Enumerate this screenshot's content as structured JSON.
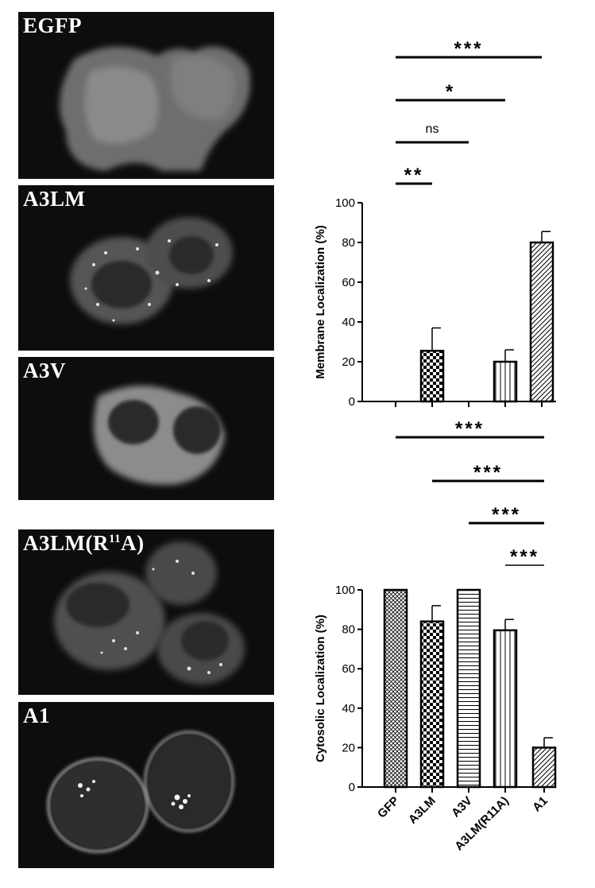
{
  "panels": [
    {
      "id": "egfp",
      "label": "EGFP"
    },
    {
      "id": "a3lm",
      "label": "A3LM"
    },
    {
      "id": "a3v",
      "label": "A3V"
    },
    {
      "id": "a3lm_r11a",
      "label_main": "A3LM(R",
      "label_sup": "11",
      "label_tail": "A)"
    },
    {
      "id": "a1",
      "label": "A1"
    }
  ],
  "chart_data": [
    {
      "type": "bar",
      "ylabel": "Membrane Localization (%)",
      "ylim": [
        0,
        100
      ],
      "yticks": [
        0,
        20,
        40,
        60,
        80,
        100
      ],
      "categories": [
        "GFP",
        "A3LM",
        "A3V",
        "A3LM(R11A)",
        "A1"
      ],
      "values": [
        0,
        25.5,
        0,
        20,
        80
      ],
      "errors": [
        0,
        11.5,
        0,
        6,
        5.5
      ],
      "patterns": [
        "crosshatch",
        "checker",
        "hlines",
        "vlines",
        "diag"
      ],
      "significance": [
        {
          "from": "GFP",
          "to": "A1",
          "label": "***"
        },
        {
          "from": "GFP",
          "to": "A3LM(R11A)",
          "label": "*"
        },
        {
          "from": "GFP",
          "to": "A3V",
          "label": "ns"
        },
        {
          "from": "GFP",
          "to": "A3LM",
          "label": "**"
        }
      ]
    },
    {
      "type": "bar",
      "ylabel": "Cytosolic Localization (%)",
      "ylim": [
        0,
        100
      ],
      "yticks": [
        0,
        20,
        40,
        60,
        80,
        100
      ],
      "categories": [
        "GFP",
        "A3LM",
        "A3V",
        "A3LM(R11A)",
        "A1"
      ],
      "values": [
        100,
        84,
        100,
        79.5,
        20
      ],
      "errors": [
        0,
        8,
        0,
        5.5,
        5
      ],
      "patterns": [
        "crosshatch",
        "checker",
        "hlines",
        "vlines",
        "diag"
      ],
      "significance": [
        {
          "from": "GFP",
          "to": "A1",
          "label": "***"
        },
        {
          "from": "A3LM",
          "to": "A1",
          "label": "***"
        },
        {
          "from": "A3V",
          "to": "A1",
          "label": "***"
        },
        {
          "from": "A3LM(R11A)",
          "to": "A1",
          "label": "***"
        }
      ]
    }
  ]
}
